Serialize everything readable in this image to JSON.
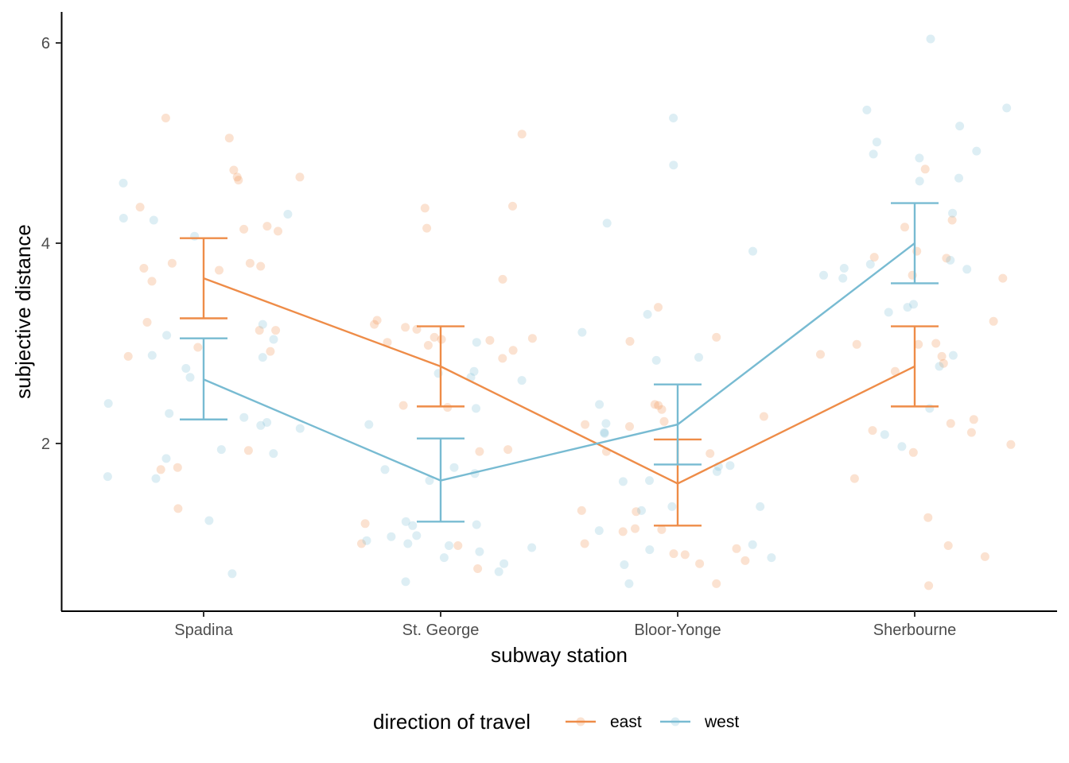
{
  "chart_data": {
    "type": "line",
    "xlabel": "subway station",
    "ylabel": "subjective distance",
    "categories": [
      "Spadina",
      "St. George",
      "Bloor-Yonge",
      "Sherbourne"
    ],
    "ylim": [
      0.35,
      6.3
    ],
    "yticks": [
      2,
      4,
      6
    ],
    "grid": false,
    "legend": {
      "title": "direction of travel",
      "position": "bottom"
    },
    "series": [
      {
        "name": "east",
        "color": "#ee8c48",
        "means": [
          3.65,
          2.77,
          1.6,
          2.77
        ],
        "errors": [
          [
            3.25,
            4.05
          ],
          [
            2.37,
            3.17
          ],
          [
            1.18,
            2.04
          ],
          [
            2.37,
            3.17
          ]
        ],
        "points": [
          [
            0,
            4.73
          ],
          [
            0,
            5.25
          ],
          [
            0,
            5.05
          ],
          [
            0,
            4.66
          ],
          [
            0,
            4.63
          ],
          [
            0,
            4.66
          ],
          [
            0,
            4.36
          ],
          [
            0,
            4.12
          ],
          [
            0,
            4.14
          ],
          [
            0,
            4.17
          ],
          [
            0,
            3.8
          ],
          [
            0,
            3.8
          ],
          [
            0,
            3.77
          ],
          [
            0,
            3.75
          ],
          [
            0,
            3.73
          ],
          [
            0,
            3.62
          ],
          [
            0,
            3.21
          ],
          [
            0,
            3.13
          ],
          [
            0,
            3.13
          ],
          [
            0,
            2.92
          ],
          [
            0,
            2.87
          ],
          [
            0,
            2.96
          ],
          [
            0,
            1.93
          ],
          [
            0,
            1.76
          ],
          [
            0,
            1.74
          ],
          [
            0,
            1.35
          ],
          [
            1,
            5.09
          ],
          [
            1,
            4.37
          ],
          [
            1,
            4.35
          ],
          [
            1,
            4.15
          ],
          [
            1,
            3.64
          ],
          [
            1,
            3.23
          ],
          [
            1,
            3.19
          ],
          [
            1,
            3.16
          ],
          [
            1,
            3.14
          ],
          [
            1,
            3.04
          ],
          [
            1,
            3.05
          ],
          [
            1,
            3.06
          ],
          [
            1,
            3.03
          ],
          [
            1,
            3.01
          ],
          [
            1,
            2.98
          ],
          [
            1,
            2.93
          ],
          [
            1,
            2.85
          ],
          [
            1,
            2.38
          ],
          [
            1,
            2.36
          ],
          [
            1,
            1.94
          ],
          [
            1,
            1.92
          ],
          [
            1,
            1.2
          ],
          [
            1,
            0.98
          ],
          [
            1,
            1.0
          ],
          [
            1,
            0.75
          ],
          [
            2,
            3.36
          ],
          [
            2,
            3.06
          ],
          [
            2,
            3.02
          ],
          [
            2,
            2.39
          ],
          [
            2,
            2.38
          ],
          [
            2,
            2.34
          ],
          [
            2,
            2.27
          ],
          [
            2,
            2.22
          ],
          [
            2,
            2.19
          ],
          [
            2,
            2.17
          ],
          [
            2,
            1.92
          ],
          [
            2,
            1.9
          ],
          [
            2,
            1.33
          ],
          [
            2,
            1.32
          ],
          [
            2,
            1.15
          ],
          [
            2,
            1.14
          ],
          [
            2,
            1.12
          ],
          [
            2,
            0.95
          ],
          [
            2,
            0.9
          ],
          [
            2,
            0.89
          ],
          [
            2,
            0.83
          ],
          [
            2,
            0.8
          ],
          [
            2,
            0.6
          ],
          [
            2,
            1.0
          ],
          [
            3,
            4.74
          ],
          [
            3,
            4.16
          ],
          [
            3,
            3.92
          ],
          [
            3,
            3.85
          ],
          [
            3,
            3.86
          ],
          [
            3,
            3.68
          ],
          [
            3,
            3.65
          ],
          [
            3,
            2.99
          ],
          [
            3,
            2.99
          ],
          [
            3,
            3.22
          ],
          [
            3,
            3.0
          ],
          [
            3,
            2.89
          ],
          [
            3,
            2.87
          ],
          [
            3,
            2.8
          ],
          [
            3,
            2.72
          ],
          [
            3,
            2.24
          ],
          [
            3,
            2.2
          ],
          [
            3,
            2.13
          ],
          [
            3,
            2.11
          ],
          [
            3,
            1.99
          ],
          [
            3,
            1.91
          ],
          [
            3,
            1.65
          ],
          [
            3,
            1.26
          ],
          [
            3,
            0.98
          ],
          [
            3,
            0.87
          ],
          [
            3,
            0.58
          ],
          [
            3,
            4.23
          ]
        ]
      },
      {
        "name": "west",
        "color": "#78bbd2",
        "means": [
          2.64,
          1.63,
          2.19,
          4.0
        ],
        "errors": [
          [
            2.24,
            3.05
          ],
          [
            1.22,
            2.05
          ],
          [
            1.79,
            2.59
          ],
          [
            3.6,
            4.4
          ]
        ],
        "points": [
          [
            0,
            4.6
          ],
          [
            0,
            4.29
          ],
          [
            0,
            4.25
          ],
          [
            0,
            4.23
          ],
          [
            0,
            4.07
          ],
          [
            0,
            3.19
          ],
          [
            0,
            3.08
          ],
          [
            0,
            3.04
          ],
          [
            0,
            2.88
          ],
          [
            0,
            2.86
          ],
          [
            0,
            2.75
          ],
          [
            0,
            2.66
          ],
          [
            0,
            2.4
          ],
          [
            0,
            2.3
          ],
          [
            0,
            2.26
          ],
          [
            0,
            2.21
          ],
          [
            0,
            2.18
          ],
          [
            0,
            2.15
          ],
          [
            0,
            1.94
          ],
          [
            0,
            1.9
          ],
          [
            0,
            1.85
          ],
          [
            0,
            1.67
          ],
          [
            0,
            1.65
          ],
          [
            0,
            1.23
          ],
          [
            0,
            0.7
          ],
          [
            1,
            3.01
          ],
          [
            1,
            2.72
          ],
          [
            1,
            2.7
          ],
          [
            1,
            2.66
          ],
          [
            1,
            2.63
          ],
          [
            1,
            2.35
          ],
          [
            1,
            2.19
          ],
          [
            1,
            1.76
          ],
          [
            1,
            1.74
          ],
          [
            1,
            1.7
          ],
          [
            1,
            1.63
          ],
          [
            1,
            1.22
          ],
          [
            1,
            1.19
          ],
          [
            1,
            1.18
          ],
          [
            1,
            1.08
          ],
          [
            1,
            1.07
          ],
          [
            1,
            1.0
          ],
          [
            1,
            1.03
          ],
          [
            1,
            0.98
          ],
          [
            1,
            0.96
          ],
          [
            1,
            0.92
          ],
          [
            1,
            0.86
          ],
          [
            1,
            0.8
          ],
          [
            1,
            0.72
          ],
          [
            1,
            0.62
          ],
          [
            2,
            5.25
          ],
          [
            2,
            4.78
          ],
          [
            2,
            4.2
          ],
          [
            2,
            3.92
          ],
          [
            2,
            3.29
          ],
          [
            2,
            3.11
          ],
          [
            2,
            2.86
          ],
          [
            2,
            2.83
          ],
          [
            2,
            2.39
          ],
          [
            2,
            2.2
          ],
          [
            2,
            2.11
          ],
          [
            2,
            2.1
          ],
          [
            2,
            1.78
          ],
          [
            2,
            1.77
          ],
          [
            2,
            1.72
          ],
          [
            2,
            1.63
          ],
          [
            2,
            1.62
          ],
          [
            2,
            1.37
          ],
          [
            2,
            1.37
          ],
          [
            2,
            1.33
          ],
          [
            2,
            1.13
          ],
          [
            2,
            0.99
          ],
          [
            2,
            0.94
          ],
          [
            2,
            0.86
          ],
          [
            2,
            0.79
          ],
          [
            2,
            0.6
          ],
          [
            3,
            6.04
          ],
          [
            3,
            5.35
          ],
          [
            3,
            5.33
          ],
          [
            3,
            5.17
          ],
          [
            3,
            5.01
          ],
          [
            3,
            4.92
          ],
          [
            3,
            4.89
          ],
          [
            3,
            4.85
          ],
          [
            3,
            4.65
          ],
          [
            3,
            4.62
          ],
          [
            3,
            4.3
          ],
          [
            3,
            3.83
          ],
          [
            3,
            3.79
          ],
          [
            3,
            3.75
          ],
          [
            3,
            3.74
          ],
          [
            3,
            3.68
          ],
          [
            3,
            3.65
          ],
          [
            3,
            3.39
          ],
          [
            3,
            3.36
          ],
          [
            3,
            3.31
          ],
          [
            3,
            2.88
          ],
          [
            3,
            2.77
          ],
          [
            3,
            2.35
          ],
          [
            3,
            2.09
          ],
          [
            3,
            1.97
          ]
        ]
      }
    ]
  }
}
